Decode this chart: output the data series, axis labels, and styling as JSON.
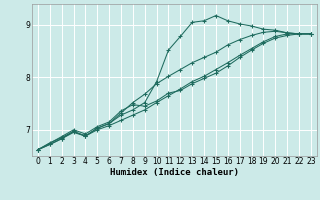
{
  "xlabel": "Humidex (Indice chaleur)",
  "bg_color": "#cceae8",
  "grid_color": "#ffffff",
  "line_color": "#1e6b5e",
  "xlim": [
    -0.5,
    23.5
  ],
  "ylim": [
    6.5,
    9.4
  ],
  "xticks": [
    0,
    1,
    2,
    3,
    4,
    5,
    6,
    7,
    8,
    9,
    10,
    11,
    12,
    13,
    14,
    15,
    16,
    17,
    18,
    19,
    20,
    21,
    22,
    23
  ],
  "yticks": [
    7,
    8,
    9
  ],
  "line1_x": [
    0,
    1,
    2,
    3,
    4,
    5,
    6,
    7,
    8,
    9,
    10,
    11,
    12,
    13,
    14,
    15,
    16,
    17,
    18,
    19,
    20,
    21,
    22,
    23
  ],
  "line1_y": [
    6.62,
    6.75,
    6.85,
    6.97,
    6.88,
    7.03,
    7.12,
    7.28,
    7.38,
    7.52,
    7.92,
    8.52,
    8.78,
    9.05,
    9.08,
    9.18,
    9.08,
    9.02,
    8.98,
    8.92,
    8.9,
    8.85,
    8.83,
    8.83
  ],
  "line2_x": [
    0,
    1,
    2,
    3,
    4,
    5,
    6,
    7,
    8,
    9,
    10,
    11,
    12,
    13,
    14,
    15,
    16,
    17,
    18,
    19,
    20,
    21,
    22,
    23
  ],
  "line2_y": [
    6.62,
    6.72,
    6.83,
    6.95,
    6.88,
    7.0,
    7.08,
    7.18,
    7.28,
    7.38,
    7.52,
    7.65,
    7.78,
    7.92,
    8.02,
    8.15,
    8.28,
    8.42,
    8.55,
    8.68,
    8.78,
    8.83,
    8.83,
    8.83
  ],
  "line3_x": [
    0,
    1,
    2,
    3,
    4,
    5,
    6,
    7,
    8,
    9,
    10,
    11,
    12,
    13,
    14,
    15,
    16,
    17,
    18,
    19,
    20,
    21,
    22,
    23
  ],
  "line3_y": [
    6.62,
    6.72,
    6.83,
    6.97,
    6.88,
    7.03,
    7.12,
    7.32,
    7.52,
    7.68,
    7.88,
    8.02,
    8.15,
    8.28,
    8.38,
    8.48,
    8.62,
    8.72,
    8.8,
    8.86,
    8.88,
    8.85,
    8.83,
    8.83
  ],
  "line4_x": [
    0,
    2,
    3,
    4,
    5,
    6,
    7,
    8,
    9,
    10,
    11,
    12,
    13,
    14,
    15,
    16,
    17,
    18,
    19,
    20,
    21,
    22,
    23
  ],
  "line4_y": [
    6.62,
    6.87,
    7.0,
    6.92,
    7.06,
    7.15,
    7.36,
    7.48,
    7.45,
    7.55,
    7.7,
    7.75,
    7.88,
    7.98,
    8.08,
    8.22,
    8.38,
    8.52,
    8.65,
    8.75,
    8.8,
    8.83,
    8.83
  ]
}
